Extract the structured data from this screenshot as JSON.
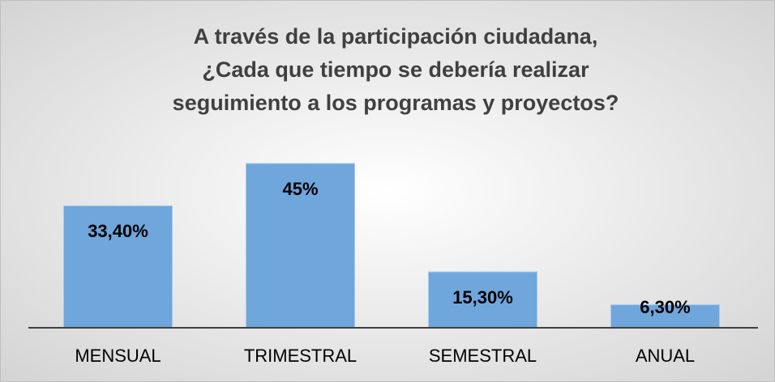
{
  "chart_data": {
    "type": "bar",
    "title": [
      "A través de la participación ciudadana,",
      "¿Cada que tiempo se debería realizar",
      "seguimiento a los programas y proyectos?"
    ],
    "categories": [
      "MENSUAL",
      "TRIMESTRAL",
      "SEMESTRAL",
      "ANUAL"
    ],
    "values": [
      33.4,
      45,
      15.3,
      6.3
    ],
    "value_labels": [
      "33,40%",
      "45%",
      "15,30%",
      "6,30%"
    ],
    "color": "#6fa6dc"
  }
}
